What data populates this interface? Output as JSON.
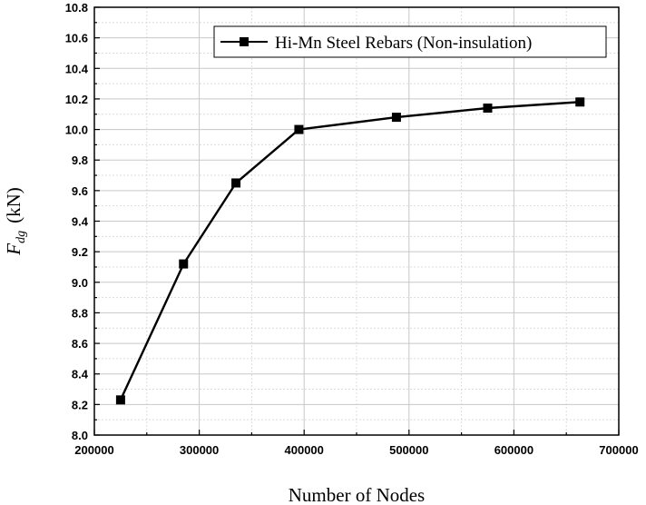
{
  "chart_data": {
    "type": "line",
    "title": "",
    "xlabel": "Number of Nodes",
    "ylabel": {
      "symbol": "F",
      "subscript": "dg",
      "unit": "(kN)"
    },
    "xlim": [
      200000,
      700000
    ],
    "ylim": [
      8.0,
      10.8
    ],
    "x_ticks": [
      "200000",
      "300000",
      "400000",
      "500000",
      "600000",
      "700000"
    ],
    "y_ticks": [
      "8.0",
      "8.2",
      "8.4",
      "8.6",
      "8.8",
      "9.0",
      "9.2",
      "9.4",
      "9.6",
      "9.8",
      "10.0",
      "10.2",
      "10.4",
      "10.6",
      "10.8"
    ],
    "grid": true,
    "legend_position": "top-right",
    "series": [
      {
        "name": "Hi-Mn Steel Rebars (Non-insulation)",
        "color": "#000000",
        "marker": "square",
        "x": [
          225000,
          285000,
          335000,
          395000,
          488000,
          575000,
          663000
        ],
        "y": [
          8.23,
          9.12,
          9.65,
          10.0,
          10.08,
          10.14,
          10.18
        ]
      }
    ]
  }
}
